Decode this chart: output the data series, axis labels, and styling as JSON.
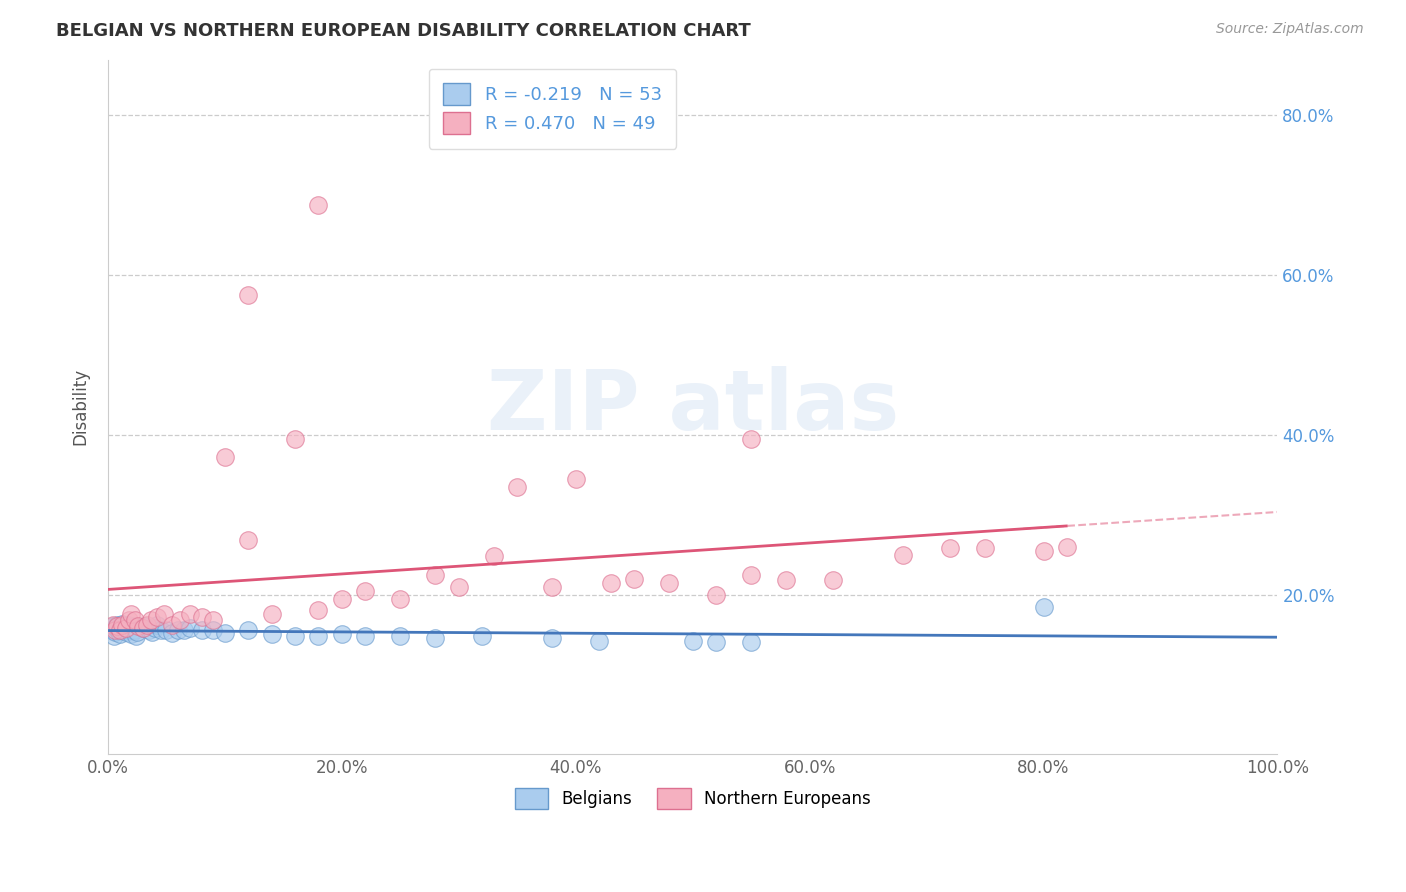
{
  "title": "BELGIAN VS NORTHERN EUROPEAN DISABILITY CORRELATION CHART",
  "source": "Source: ZipAtlas.com",
  "ylabel": "Disability",
  "xlim": [
    0.0,
    1.0
  ],
  "ylim": [
    0.0,
    0.87
  ],
  "xtick_positions": [
    0.0,
    0.2,
    0.4,
    0.6,
    0.8,
    1.0
  ],
  "xtick_labels": [
    "0.0%",
    "20.0%",
    "40.0%",
    "60.0%",
    "80.0%",
    "100.0%"
  ],
  "ytick_positions": [
    0.2,
    0.4,
    0.6,
    0.8
  ],
  "ytick_labels": [
    "20.0%",
    "40.0%",
    "60.0%",
    "80.0%"
  ],
  "grid_color": "#cccccc",
  "background_color": "#ffffff",
  "belgian_face_color": "#aaccee",
  "belgian_edge_color": "#6699cc",
  "northern_face_color": "#f5b0c0",
  "northern_edge_color": "#dd7090",
  "belgian_line_color": "#4477bb",
  "northern_line_color": "#dd5577",
  "tick_color": "#5599dd",
  "R_belgian": -0.219,
  "N_belgian": 53,
  "R_northern": 0.47,
  "N_northern": 49,
  "belgians_scatter_x": [
    0.003,
    0.004,
    0.005,
    0.006,
    0.007,
    0.008,
    0.009,
    0.01,
    0.011,
    0.012,
    0.013,
    0.014,
    0.015,
    0.016,
    0.017,
    0.018,
    0.019,
    0.02,
    0.021,
    0.022,
    0.023,
    0.024,
    0.025,
    0.03,
    0.032,
    0.035,
    0.038,
    0.04,
    0.042,
    0.045,
    0.05,
    0.055,
    0.06,
    0.065,
    0.07,
    0.08,
    0.09,
    0.1,
    0.12,
    0.14,
    0.16,
    0.18,
    0.2,
    0.22,
    0.25,
    0.28,
    0.32,
    0.38,
    0.42,
    0.5,
    0.55,
    0.8,
    0.52
  ],
  "belgians_scatter_y": [
    0.155,
    0.16,
    0.148,
    0.153,
    0.158,
    0.162,
    0.155,
    0.15,
    0.158,
    0.163,
    0.155,
    0.16,
    0.153,
    0.158,
    0.162,
    0.155,
    0.158,
    0.15,
    0.155,
    0.16,
    0.155,
    0.148,
    0.153,
    0.158,
    0.16,
    0.155,
    0.153,
    0.158,
    0.162,
    0.155,
    0.155,
    0.152,
    0.155,
    0.155,
    0.158,
    0.155,
    0.155,
    0.152,
    0.155,
    0.15,
    0.148,
    0.148,
    0.15,
    0.148,
    0.148,
    0.145,
    0.148,
    0.145,
    0.142,
    0.142,
    0.14,
    0.185,
    0.14
  ],
  "northern_scatter_x": [
    0.004,
    0.006,
    0.008,
    0.01,
    0.012,
    0.015,
    0.018,
    0.02,
    0.023,
    0.026,
    0.03,
    0.033,
    0.037,
    0.042,
    0.048,
    0.055,
    0.062,
    0.07,
    0.08,
    0.09,
    0.1,
    0.12,
    0.14,
    0.16,
    0.18,
    0.2,
    0.22,
    0.25,
    0.28,
    0.3,
    0.33,
    0.35,
    0.38,
    0.4,
    0.43,
    0.45,
    0.48,
    0.52,
    0.55,
    0.58,
    0.62,
    0.68,
    0.72,
    0.75,
    0.8,
    0.82,
    0.55,
    0.18,
    0.12
  ],
  "northern_scatter_y": [
    0.162,
    0.155,
    0.16,
    0.155,
    0.162,
    0.158,
    0.168,
    0.175,
    0.168,
    0.16,
    0.158,
    0.162,
    0.168,
    0.172,
    0.175,
    0.162,
    0.168,
    0.175,
    0.172,
    0.168,
    0.372,
    0.268,
    0.175,
    0.395,
    0.18,
    0.195,
    0.205,
    0.195,
    0.225,
    0.21,
    0.248,
    0.335,
    0.21,
    0.345,
    0.215,
    0.22,
    0.215,
    0.2,
    0.225,
    0.218,
    0.218,
    0.25,
    0.258,
    0.258,
    0.255,
    0.26,
    0.395,
    0.688,
    0.575
  ]
}
